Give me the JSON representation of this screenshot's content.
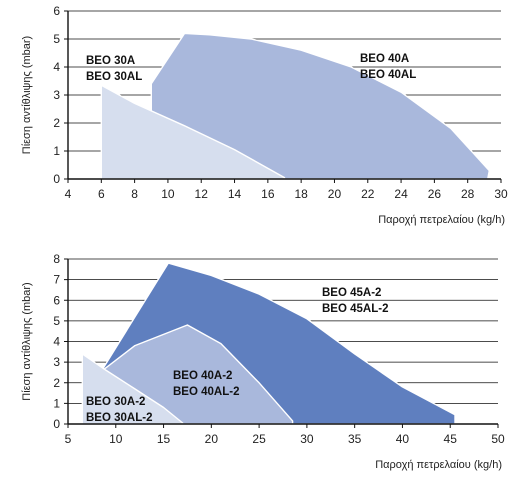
{
  "colors": {
    "axis": "#111111",
    "grid": "#111111",
    "beo30": "#d6deee",
    "beo40": "#a9b8dc",
    "beo45": "#5f7fbf",
    "outline": "#ffffff",
    "text": "#111111"
  },
  "chart_data": [
    {
      "type": "area",
      "title": "",
      "xlabel": "Παροχή πετρελαίου (kg/h)",
      "ylabel": "Πίεση αντίθλιψης (mbar)",
      "xlim": [
        4,
        30
      ],
      "ylim": [
        0,
        6
      ],
      "xticks": [
        4,
        6,
        8,
        10,
        12,
        14,
        16,
        18,
        20,
        22,
        24,
        26,
        28,
        30
      ],
      "yticks": [
        0,
        1,
        2,
        3,
        4,
        5,
        6
      ],
      "grid": "y",
      "series": [
        {
          "name": "BEO 40A / BEO 40AL",
          "label_lines": [
            "BEO 40A",
            "BEO 40AL"
          ],
          "color_key": "beo40",
          "points": [
            [
              9,
              0
            ],
            [
              9,
              3.4
            ],
            [
              11,
              5.2
            ],
            [
              12.5,
              5.15
            ],
            [
              15,
              5.0
            ],
            [
              18,
              4.6
            ],
            [
              21,
              4.0
            ],
            [
              24,
              3.1
            ],
            [
              27,
              1.8
            ],
            [
              29.3,
              0.3
            ],
            [
              29.2,
              0
            ]
          ]
        },
        {
          "name": "BEO 30A / BEO 30AL",
          "label_lines": [
            "BEO 30A",
            "BEO 30AL"
          ],
          "color_key": "beo30",
          "points": [
            [
              6,
              0
            ],
            [
              6,
              3.35
            ],
            [
              8,
              2.7
            ],
            [
              11,
              1.9
            ],
            [
              14,
              1.05
            ],
            [
              17,
              0.05
            ],
            [
              17,
              0
            ]
          ]
        }
      ]
    },
    {
      "type": "area",
      "title": "",
      "xlabel": "Παροχή πετρελαίου (kg/h)",
      "ylabel": "Πίεση αντίθλιψης (mbar)",
      "xlim": [
        5,
        50
      ],
      "ylim": [
        0,
        8
      ],
      "xticks": [
        5,
        10,
        15,
        20,
        25,
        30,
        35,
        40,
        45,
        50
      ],
      "yticks": [
        0,
        1,
        2,
        3,
        4,
        5,
        6,
        7,
        8
      ],
      "grid": "y",
      "series": [
        {
          "name": "BEO 45A-2 / BEO 45AL-2",
          "label_lines": [
            "BEO 45A-2",
            "BEO 45AL-2"
          ],
          "color_key": "beo45",
          "points": [
            [
              8,
              0
            ],
            [
              8,
              2.2
            ],
            [
              15.5,
              7.8
            ],
            [
              20,
              7.2
            ],
            [
              25,
              6.3
            ],
            [
              30,
              5.1
            ],
            [
              35,
              3.4
            ],
            [
              40,
              1.8
            ],
            [
              45.5,
              0.45
            ],
            [
              45.5,
              0
            ]
          ]
        },
        {
          "name": "BEO 40A-2 / BEO 40AL-2",
          "label_lines": [
            "BEO 40A-2",
            "BEO 40AL-2"
          ],
          "color_key": "beo40",
          "points": [
            [
              7.5,
              0
            ],
            [
              7.5,
              2.2
            ],
            [
              12,
              3.8
            ],
            [
              17.5,
              4.8
            ],
            [
              21,
              3.9
            ],
            [
              25,
              2.0
            ],
            [
              28.5,
              0.15
            ],
            [
              28.5,
              0
            ]
          ]
        },
        {
          "name": "BEO 30A-2 / BEO 30AL-2",
          "label_lines": [
            "BEO 30A-2",
            "BEO 30AL-2"
          ],
          "color_key": "beo30",
          "points": [
            [
              6.5,
              0
            ],
            [
              6.5,
              3.4
            ],
            [
              9,
              2.6
            ],
            [
              12,
              1.7
            ],
            [
              15,
              0.8
            ],
            [
              17,
              0.05
            ],
            [
              17,
              0
            ]
          ]
        }
      ]
    }
  ]
}
